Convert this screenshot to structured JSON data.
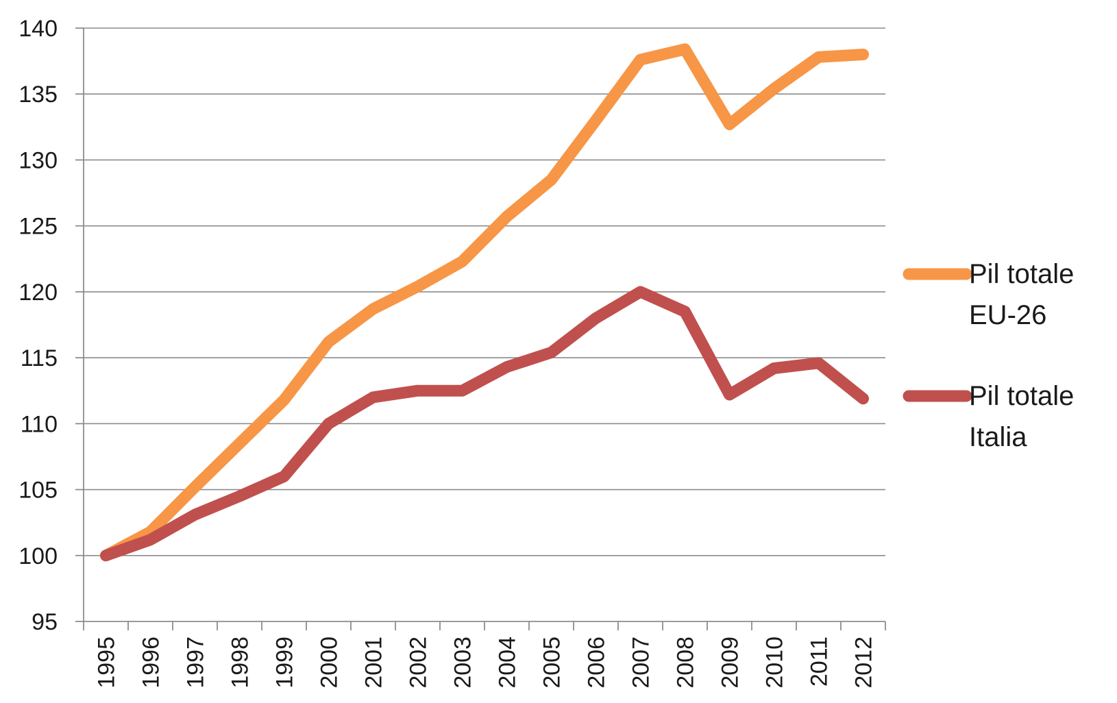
{
  "chart_data": {
    "type": "line",
    "title": "",
    "xlabel": "",
    "ylabel": "",
    "categories": [
      "1995",
      "1996",
      "1997",
      "1998",
      "1999",
      "2000",
      "2001",
      "2002",
      "2003",
      "2004",
      "2005",
      "2006",
      "2007",
      "2008",
      "2009",
      "2010",
      "2011",
      "2012"
    ],
    "ylim": [
      95,
      140
    ],
    "yticks": [
      95,
      100,
      105,
      110,
      115,
      120,
      125,
      130,
      135,
      140
    ],
    "grid": true,
    "legend_position": "right",
    "series": [
      {
        "name_lines": [
          "Pil totale",
          "EU-26"
        ],
        "color": "#F79646",
        "values": [
          100,
          101.8,
          105.2,
          108.5,
          111.8,
          116.2,
          118.7,
          120.4,
          122.3,
          125.7,
          128.5,
          133.0,
          137.6,
          138.4,
          132.7,
          135.4,
          137.8,
          138.0
        ]
      },
      {
        "name_lines": [
          "Pil totale",
          "Italia"
        ],
        "color": "#C0504D",
        "values": [
          100,
          101.2,
          103.1,
          104.5,
          106.0,
          110.0,
          112.0,
          112.5,
          112.5,
          114.3,
          115.4,
          118.0,
          120.0,
          118.5,
          112.2,
          114.2,
          114.6,
          111.9
        ]
      }
    ]
  }
}
